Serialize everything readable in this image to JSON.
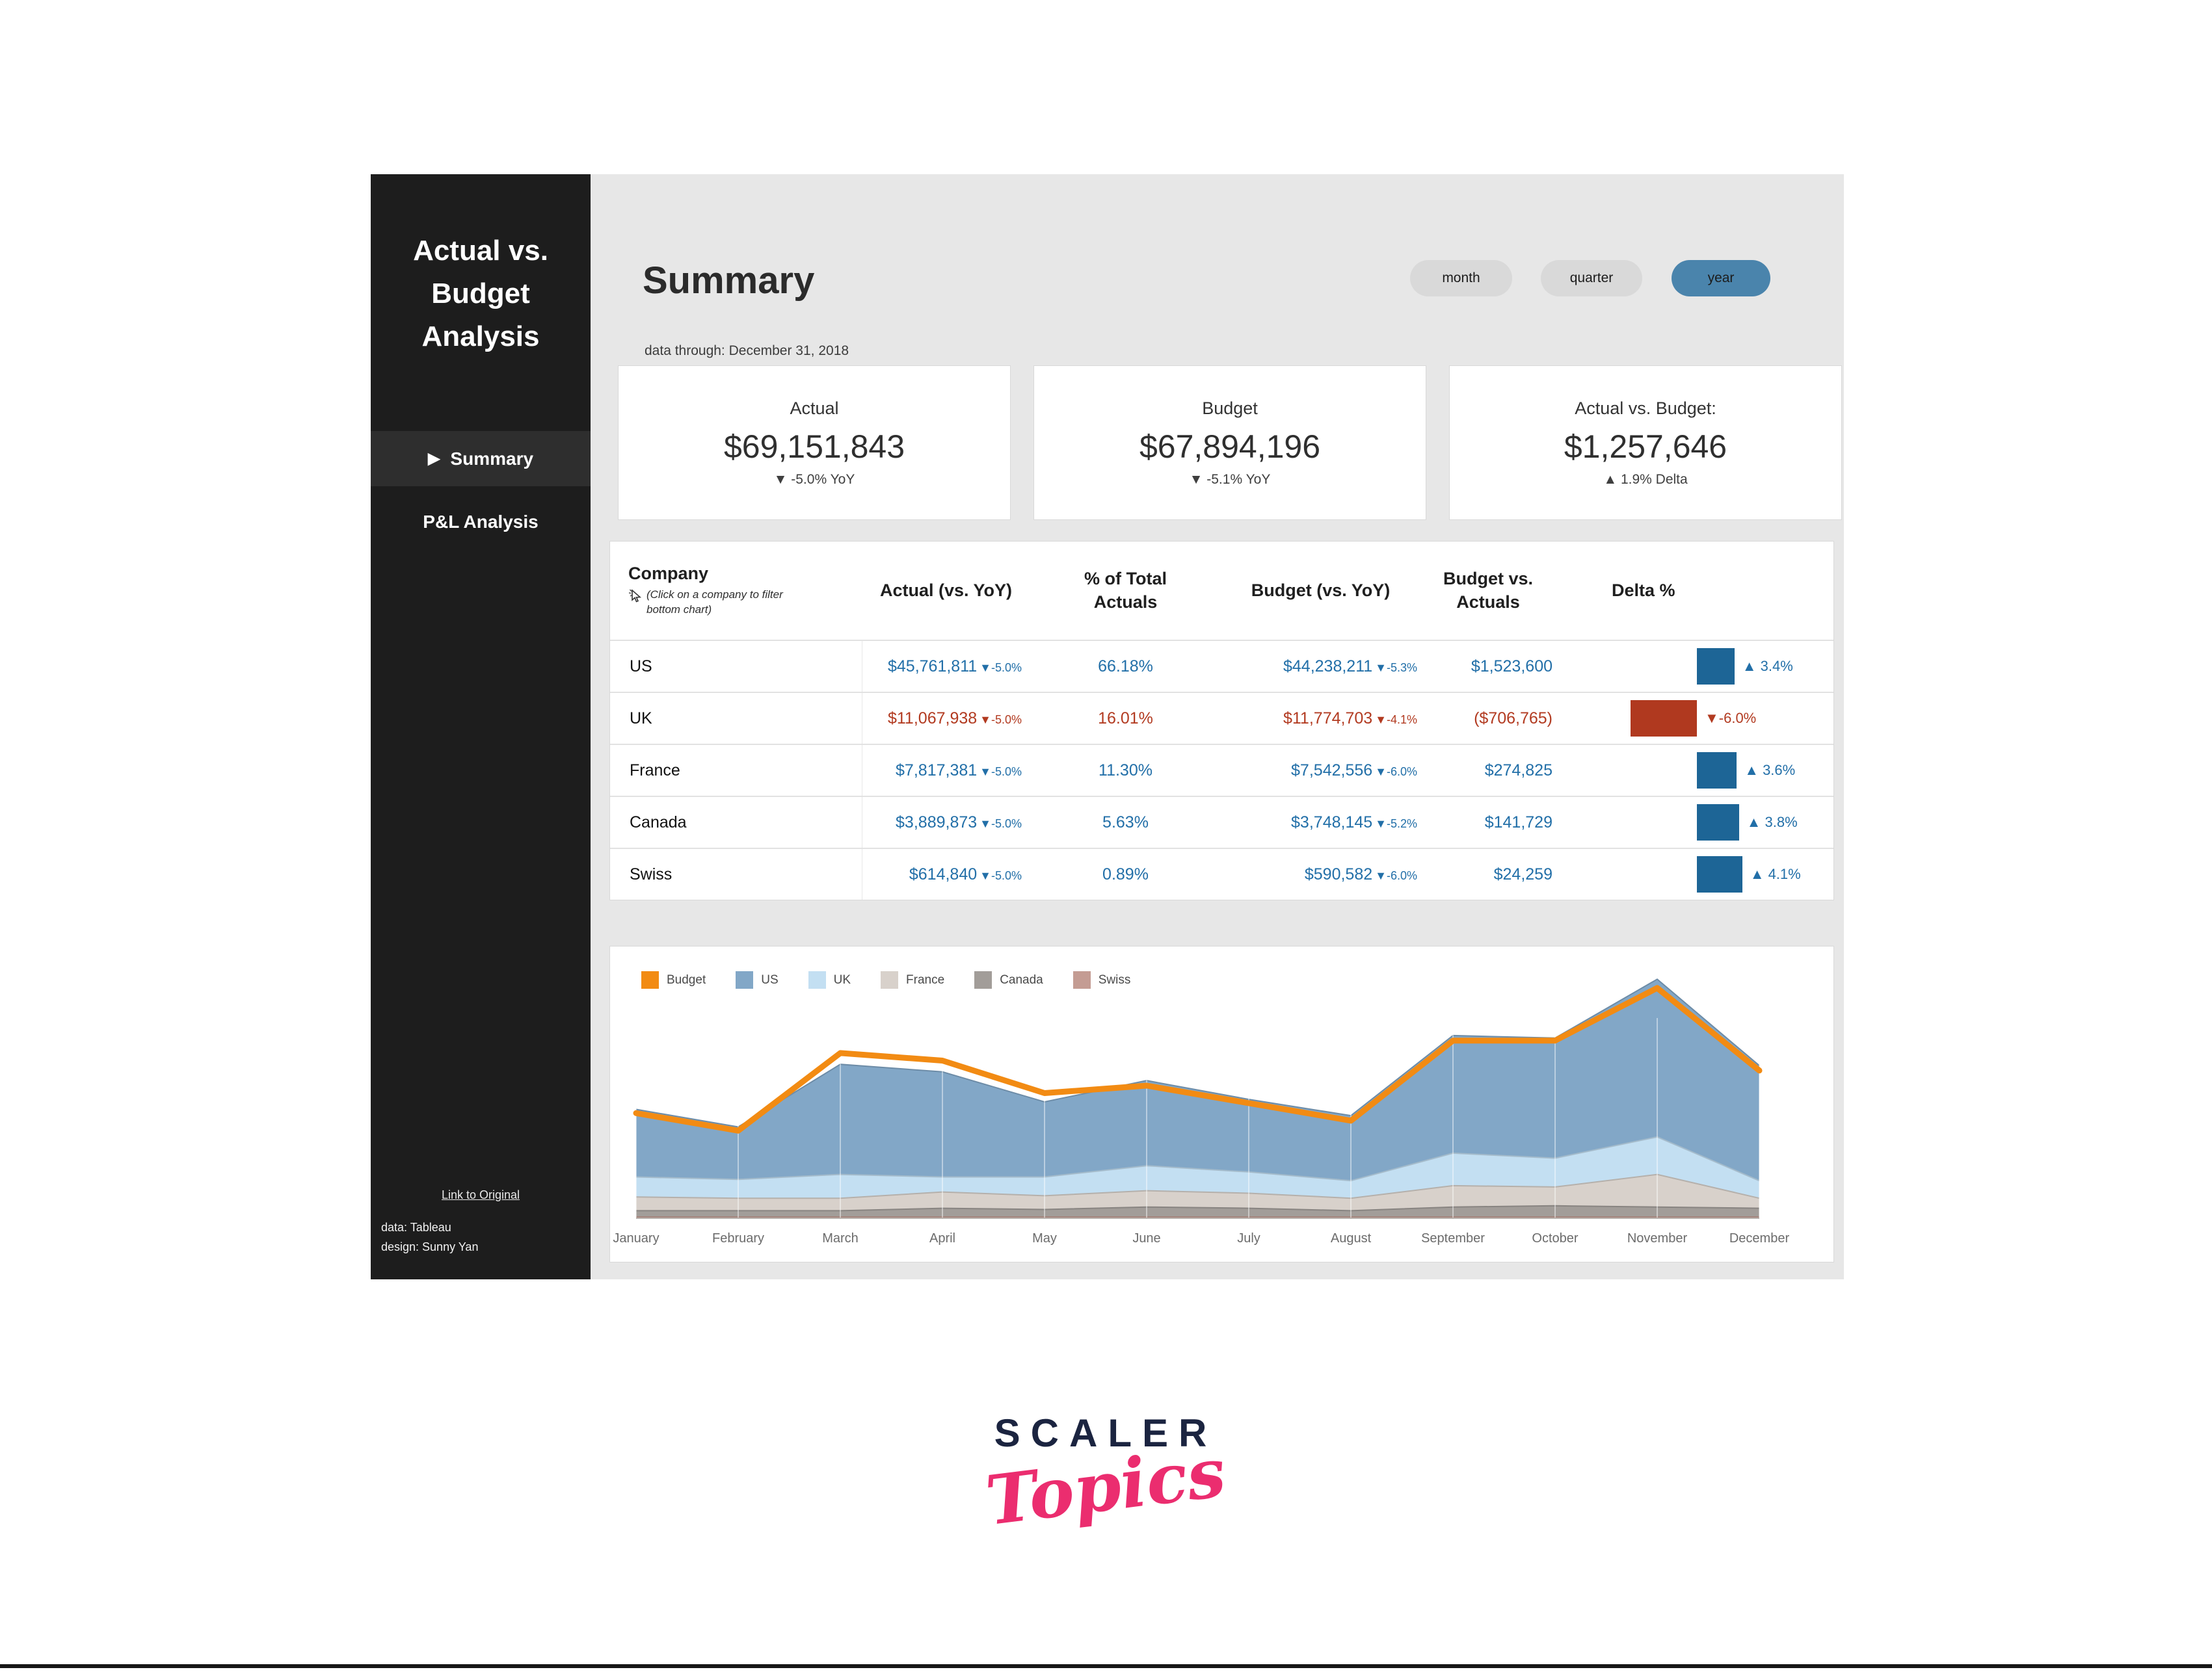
{
  "sidebar": {
    "title": "Actual vs. Budget Analysis",
    "nav": [
      {
        "marker": "▶",
        "label": "Summary",
        "selected": true
      },
      {
        "marker": "",
        "label": "P&L Analysis",
        "selected": false
      }
    ],
    "link": "Link to Original",
    "credits": [
      "data: Tableau",
      "design: Sunny Yan"
    ]
  },
  "header": {
    "title": "Summary",
    "subtitle": "data through: December 31, 2018",
    "period_buttons": [
      {
        "label": "month",
        "selected": false
      },
      {
        "label": "quarter",
        "selected": false
      },
      {
        "label": "year",
        "selected": true
      }
    ]
  },
  "kpis": [
    {
      "label": "Actual",
      "value": "$69,151,843",
      "delta": "▼ -5.0% YoY"
    },
    {
      "label": "Budget",
      "value": "$67,894,196",
      "delta": "▼ -5.1% YoY"
    },
    {
      "label": "Actual vs. Budget:",
      "value": "$1,257,646",
      "delta": "▲ 1.9% Delta"
    }
  ],
  "table": {
    "columns": [
      "Company",
      "Actual (vs. YoY)",
      "% of Total Actuals",
      "Budget (vs. YoY)",
      "Budget vs. Actuals",
      "Delta %"
    ],
    "note": "(Click on a company to filter bottom chart)",
    "rows": [
      {
        "company": "US",
        "actual": "$45,761,811",
        "actual_yoy": "▼-5.0%",
        "pct": "66.18%",
        "budget": "$44,238,211",
        "budget_yoy": "▼-5.3%",
        "bva": "$1,523,600",
        "delta": 3.4,
        "delta_label": "▲ 3.4%",
        "negative": false
      },
      {
        "company": "UK",
        "actual": "$11,067,938",
        "actual_yoy": "▼-5.0%",
        "pct": "16.01%",
        "budget": "$11,774,703",
        "budget_yoy": "▼-4.1%",
        "bva": "($706,765)",
        "delta": -6.0,
        "delta_label": "▼-6.0%",
        "negative": true
      },
      {
        "company": "France",
        "actual": "$7,817,381",
        "actual_yoy": "▼-5.0%",
        "pct": "11.30%",
        "budget": "$7,542,556",
        "budget_yoy": "▼-6.0%",
        "bva": "$274,825",
        "delta": 3.6,
        "delta_label": "▲ 3.6%",
        "negative": false
      },
      {
        "company": "Canada",
        "actual": "$3,889,873",
        "actual_yoy": "▼-5.0%",
        "pct": "5.63%",
        "budget": "$3,748,145",
        "budget_yoy": "▼-5.2%",
        "bva": "$141,729",
        "delta": 3.8,
        "delta_label": "▲ 3.8%",
        "negative": false
      },
      {
        "company": "Swiss",
        "actual": "$614,840",
        "actual_yoy": "▼-5.0%",
        "pct": "0.89%",
        "budget": "$590,582",
        "budget_yoy": "▼-6.0%",
        "bva": "$24,259",
        "delta": 4.1,
        "delta_label": "▲ 4.1%",
        "negative": false
      }
    ]
  },
  "chart_data": {
    "type": "area",
    "title": "",
    "x": [
      "January",
      "February",
      "March",
      "April",
      "May",
      "June",
      "July",
      "August",
      "September",
      "October",
      "November",
      "December"
    ],
    "ylabel": "",
    "y_axis_visible": false,
    "legend_position": "top-left",
    "units": "USD millions, estimated from plot",
    "series": [
      {
        "name": "US",
        "color": "#82a7c7",
        "values": [
          2.7,
          2.1,
          4.4,
          4.2,
          3.0,
          3.4,
          2.9,
          2.6,
          4.7,
          4.8,
          6.3,
          4.6
        ]
      },
      {
        "name": "UK",
        "color": "#c3dff2",
        "values": [
          0.8,
          0.75,
          0.95,
          0.6,
          0.75,
          1.0,
          0.85,
          0.7,
          1.3,
          1.15,
          1.5,
          0.7
        ]
      },
      {
        "name": "France",
        "color": "#d8d1cb",
        "values": [
          0.55,
          0.5,
          0.5,
          0.65,
          0.55,
          0.65,
          0.6,
          0.5,
          0.85,
          0.75,
          1.3,
          0.4
        ]
      },
      {
        "name": "Canada",
        "color": "#a29d99",
        "values": [
          0.25,
          0.25,
          0.25,
          0.35,
          0.3,
          0.4,
          0.35,
          0.25,
          0.4,
          0.45,
          0.4,
          0.35
        ]
      },
      {
        "name": "Swiss",
        "color": "#c49c93",
        "values": [
          0.05,
          0.05,
          0.05,
          0.05,
          0.05,
          0.05,
          0.05,
          0.05,
          0.05,
          0.05,
          0.05,
          0.05
        ]
      }
    ],
    "budget_line": {
      "name": "Budget",
      "color": "#f28b13",
      "values": [
        4.2,
        3.5,
        6.6,
        6.3,
        5.0,
        5.3,
        4.6,
        3.9,
        7.1,
        7.1,
        9.2,
        5.9
      ]
    },
    "legend": [
      "Budget",
      "US",
      "UK",
      "France",
      "Canada",
      "Swiss"
    ]
  },
  "colors": {
    "blue_text": "#226fa8",
    "red_text": "#b23a20",
    "bar_blue": "#1d6596",
    "bar_red": "#b0391f",
    "pill_selected": "#4a84ac",
    "budget_orange": "#f28b13"
  },
  "logo": {
    "line1": "SCALER",
    "line2": "Topics"
  }
}
